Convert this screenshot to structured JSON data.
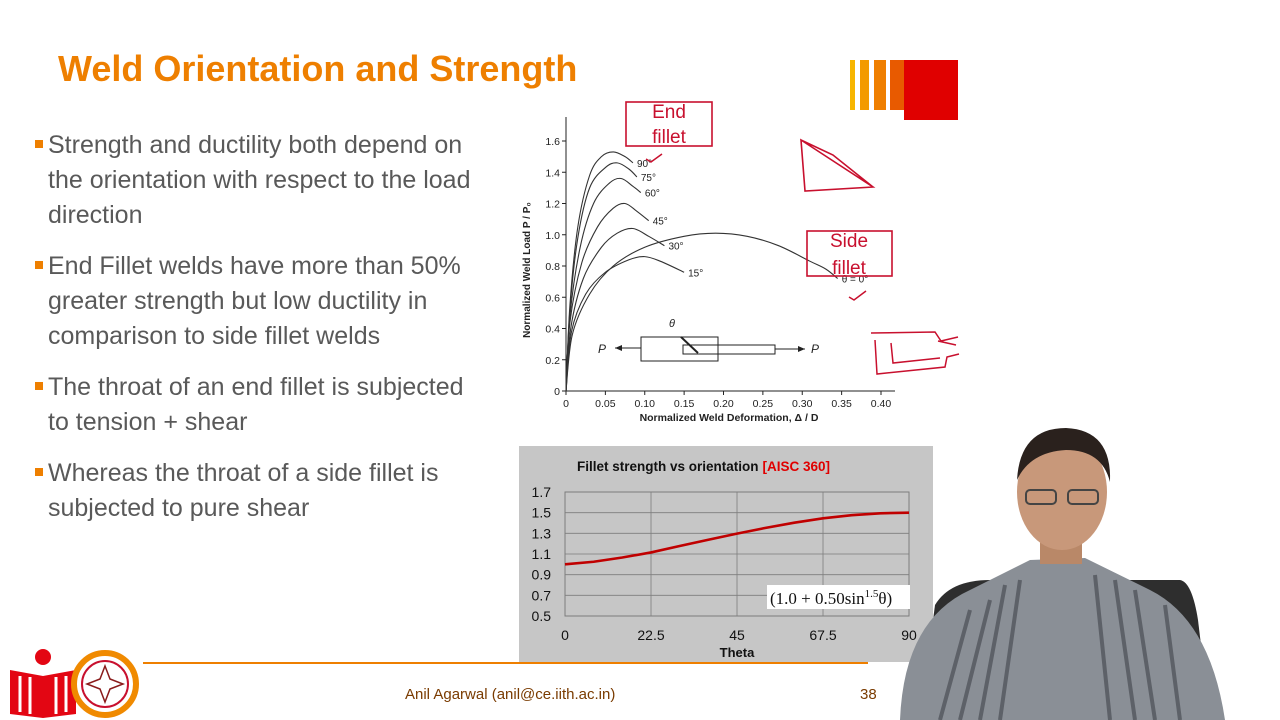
{
  "slide": {
    "title": "Weld Orientation and Strength",
    "bullets": [
      "Strength and ductility both depend on the orientation with respect to the load direction",
      "End Fillet welds have more than 50% greater strength but low ductility in comparison to side fillet welds",
      "The throat of an end fillet is subjected to tension + shear",
      "Whereas the throat of a side fillet is subjected to pure shear"
    ],
    "footer": "Anil Agarwal (anil@ce.iith.ac.in)",
    "slide_number": "38",
    "accent_color": "#ee7f00",
    "annotations": {
      "end": "End fillet",
      "side": "Side fillet"
    }
  },
  "chart_data": [
    {
      "type": "line",
      "ylabel": "Normalized Weld Load P / P₀",
      "xlabel": "Normalized Weld Deformation, Δ / D",
      "xlim": [
        0,
        0.4
      ],
      "ylim": [
        0,
        1.6
      ],
      "x_ticks": [
        "0",
        "0.05",
        "0.10",
        "0.15",
        "0.20",
        "0.25",
        "0.30",
        "0.35",
        "0.40"
      ],
      "y_ticks": [
        "0",
        "0.2",
        "0.4",
        "0.6",
        "0.8",
        "1.0",
        "1.2",
        "1.4",
        "1.6"
      ],
      "series": [
        {
          "name": "90°",
          "points": [
            [
              0,
              0
            ],
            [
              0.005,
              0.55
            ],
            [
              0.015,
              1.05
            ],
            [
              0.03,
              1.38
            ],
            [
              0.045,
              1.5
            ],
            [
              0.06,
              1.53
            ],
            [
              0.075,
              1.5
            ],
            [
              0.085,
              1.46
            ]
          ]
        },
        {
          "name": "75°",
          "points": [
            [
              0,
              0
            ],
            [
              0.005,
              0.52
            ],
            [
              0.015,
              0.98
            ],
            [
              0.03,
              1.3
            ],
            [
              0.05,
              1.43
            ],
            [
              0.065,
              1.46
            ],
            [
              0.08,
              1.42
            ],
            [
              0.09,
              1.37
            ]
          ]
        },
        {
          "name": "60°",
          "points": [
            [
              0,
              0
            ],
            [
              0.005,
              0.48
            ],
            [
              0.018,
              0.92
            ],
            [
              0.035,
              1.2
            ],
            [
              0.055,
              1.33
            ],
            [
              0.07,
              1.36
            ],
            [
              0.085,
              1.31
            ],
            [
              0.095,
              1.27
            ]
          ]
        },
        {
          "name": "45°",
          "points": [
            [
              0,
              0
            ],
            [
              0.005,
              0.44
            ],
            [
              0.02,
              0.82
            ],
            [
              0.04,
              1.05
            ],
            [
              0.06,
              1.17
            ],
            [
              0.075,
              1.2
            ],
            [
              0.09,
              1.15
            ],
            [
              0.105,
              1.09
            ]
          ]
        },
        {
          "name": "30°",
          "points": [
            [
              0,
              0
            ],
            [
              0.006,
              0.4
            ],
            [
              0.022,
              0.72
            ],
            [
              0.045,
              0.92
            ],
            [
              0.065,
              1.01
            ],
            [
              0.085,
              1.04
            ],
            [
              0.105,
              0.99
            ],
            [
              0.125,
              0.93
            ]
          ]
        },
        {
          "name": "15°",
          "points": [
            [
              0,
              0
            ],
            [
              0.007,
              0.38
            ],
            [
              0.025,
              0.62
            ],
            [
              0.05,
              0.76
            ],
            [
              0.08,
              0.84
            ],
            [
              0.1,
              0.86
            ],
            [
              0.12,
              0.83
            ],
            [
              0.15,
              0.76
            ]
          ]
        },
        {
          "name": "θ = 0°",
          "points": [
            [
              0,
              0
            ],
            [
              0.008,
              0.36
            ],
            [
              0.03,
              0.62
            ],
            [
              0.06,
              0.8
            ],
            [
              0.1,
              0.92
            ],
            [
              0.15,
              0.99
            ],
            [
              0.19,
              1.01
            ],
            [
              0.23,
              0.99
            ],
            [
              0.27,
              0.93
            ],
            [
              0.31,
              0.83
            ],
            [
              0.33,
              0.78
            ],
            [
              0.345,
              0.72
            ]
          ]
        }
      ],
      "inset_labels": {
        "theta": "θ",
        "load_left": "P",
        "load_right": "P"
      }
    },
    {
      "type": "line",
      "title": "Fillet strength vs orientation",
      "title_tag": "[AISC 360]",
      "xlabel": "Theta",
      "categories": [
        "0",
        "22.5",
        "45",
        "67.5",
        "90"
      ],
      "y_ticks": [
        "1.7",
        "1.5",
        "1.3",
        "1.1",
        "0.9",
        "0.7",
        "0.5"
      ],
      "xlim": [
        0,
        90
      ],
      "ylim": [
        0.5,
        1.7
      ],
      "formula": "(1.0 + 0.50sin",
      "formula_exp": "1.5",
      "formula_tail": "θ)",
      "series": [
        {
          "name": "",
          "x": [
            0,
            7.5,
            15,
            22.5,
            30,
            37.5,
            45,
            52.5,
            60,
            67.5,
            75,
            82.5,
            90
          ],
          "values": [
            1.0,
            1.025,
            1.066,
            1.115,
            1.177,
            1.238,
            1.297,
            1.353,
            1.403,
            1.445,
            1.476,
            1.494,
            1.5
          ]
        }
      ],
      "line_color": "#c00000",
      "tag_color": "#e00000"
    }
  ]
}
